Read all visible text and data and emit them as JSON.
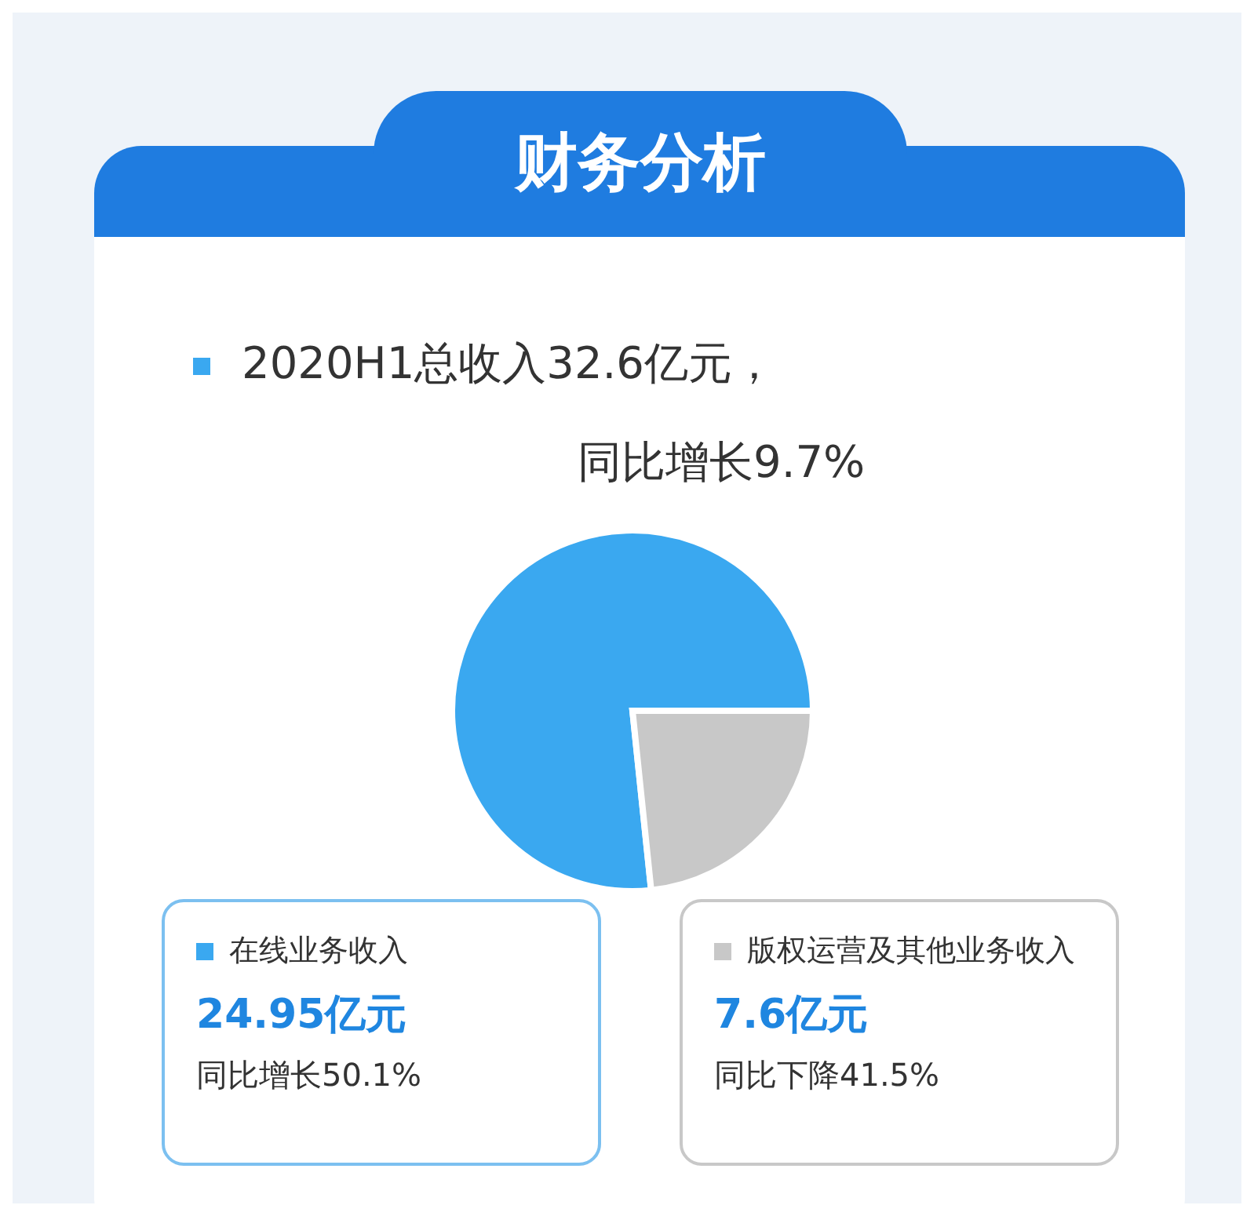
{
  "chart_data": {
    "type": "pie",
    "title": "财务分析",
    "subtitle": "2020H1总收入32.6亿元，",
    "categories": [
      "在线业务收入",
      "版权运营及其他业务收入"
    ],
    "values": [
      24.95,
      7.6
    ],
    "colors": [
      "#3aa8f0",
      "#c8c8c8"
    ],
    "legend": "bottom",
    "value_labels": [
      "24.95亿元",
      "7.6亿元"
    ],
    "annotations": [
      "同比增长9.7%",
      "同比增长50.1%",
      "同比下降41.5%"
    ]
  }
}
